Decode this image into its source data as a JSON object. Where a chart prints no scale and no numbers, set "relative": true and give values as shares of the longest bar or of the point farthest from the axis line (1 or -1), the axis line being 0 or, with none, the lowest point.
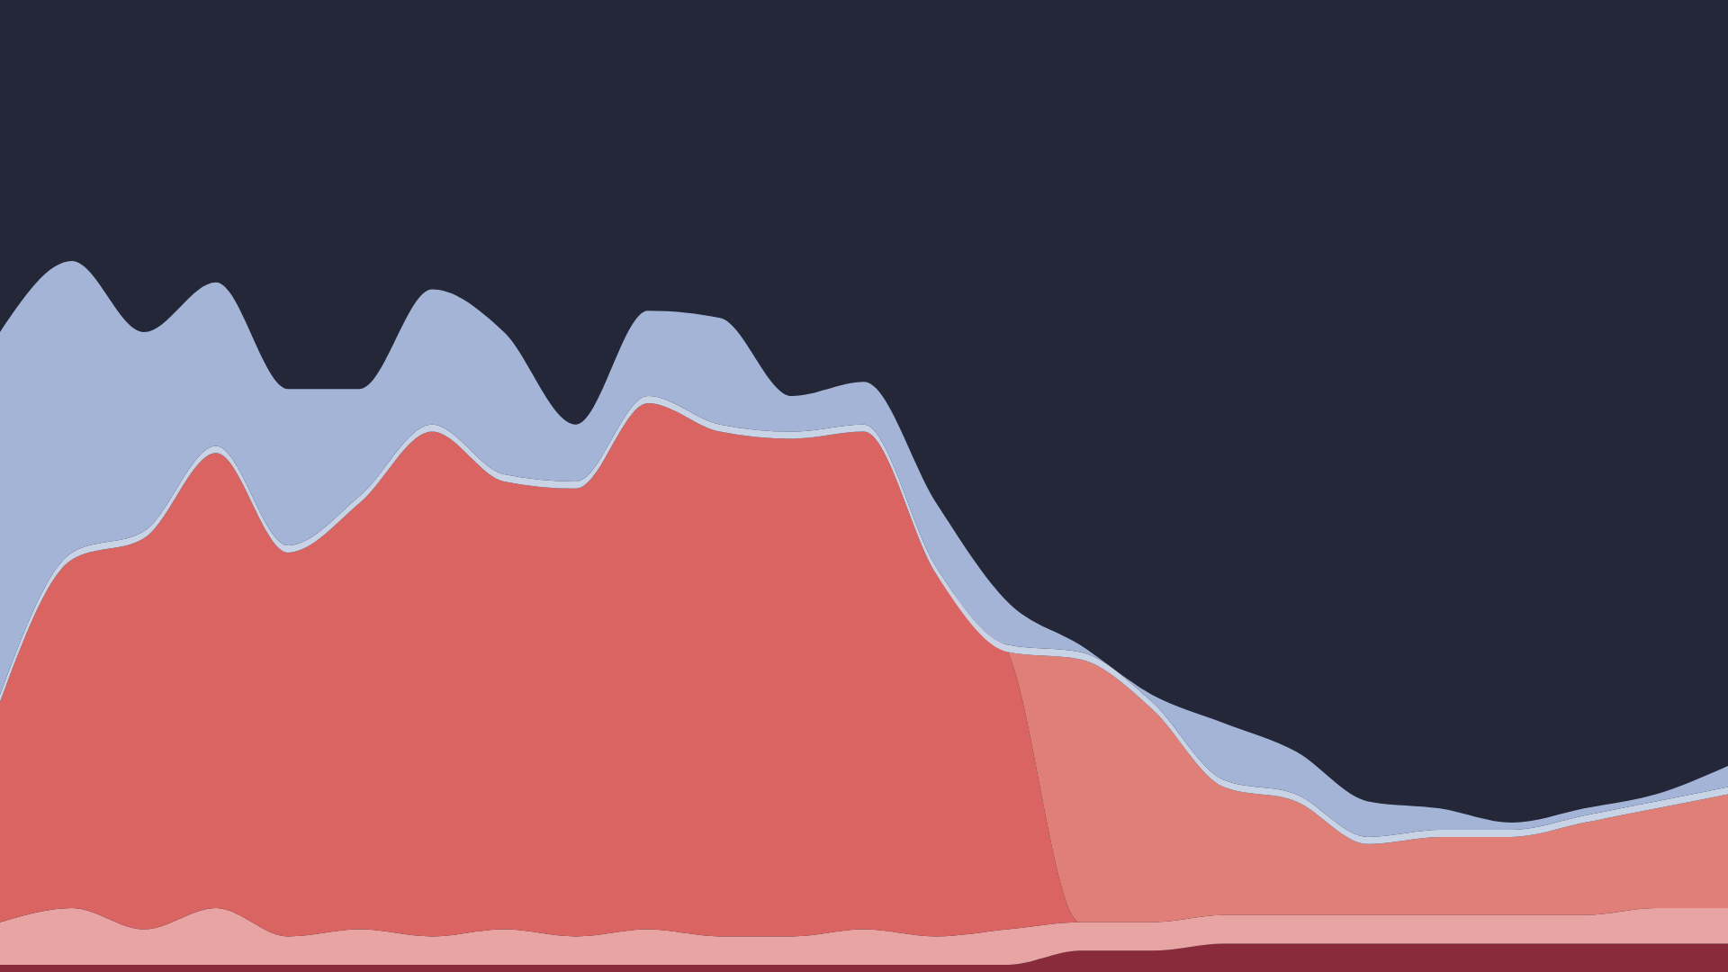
{
  "chart_data": {
    "type": "area",
    "stacked": true,
    "relative": true,
    "legend": false,
    "categories": [
      null,
      null,
      null,
      null,
      null,
      null,
      null,
      null,
      null,
      null,
      null,
      null,
      null,
      null,
      null,
      null,
      null,
      null,
      null,
      null,
      null,
      null,
      null,
      null,
      null
    ],
    "series": [
      {
        "color": "#8a2b3b",
        "values": [
          0.01,
          0.01,
          0.01,
          0.01,
          0.01,
          0.01,
          0.01,
          0.01,
          0.01,
          0.01,
          0.01,
          0.01,
          0.01,
          0.01,
          0.01,
          0.03,
          0.03,
          0.04,
          0.04,
          0.04,
          0.04,
          0.04,
          0.04,
          0.04,
          0.04
        ]
      },
      {
        "color": "#e8a3a3",
        "values": [
          0.06,
          0.08,
          0.05,
          0.08,
          0.04,
          0.05,
          0.04,
          0.05,
          0.04,
          0.05,
          0.04,
          0.04,
          0.05,
          0.04,
          0.05,
          0.04,
          0.04,
          0.04,
          0.04,
          0.04,
          0.04,
          0.04,
          0.04,
          0.05,
          0.05
        ]
      },
      {
        "color": "#d96461",
        "values": [
          0.31,
          0.49,
          0.55,
          0.64,
          0.54,
          0.6,
          0.71,
          0.63,
          0.63,
          0.74,
          0.71,
          0.7,
          0.7,
          0.51,
          0.39,
          0,
          0,
          0,
          0,
          0,
          0,
          0,
          0,
          0,
          0
        ]
      },
      {
        "color": "#e07f77",
        "values": [
          0,
          0,
          0,
          0,
          0,
          0,
          0,
          0,
          0,
          0,
          0,
          0,
          0,
          0,
          0,
          0.37,
          0.3,
          0.18,
          0.16,
          0.1,
          0.11,
          0.11,
          0.13,
          0.14,
          0.16
        ]
      },
      {
        "color": "#c9d3e6",
        "values": [
          0.01,
          0.01,
          0.01,
          0.01,
          0.01,
          0.01,
          0.01,
          0.01,
          0.01,
          0.01,
          0.01,
          0.01,
          0.01,
          0.01,
          0.01,
          0.01,
          0.01,
          0.01,
          0.01,
          0.01,
          0.01,
          0.01,
          0.01,
          0.01,
          0.01
        ]
      },
      {
        "color": "#a3b4d6",
        "values": [
          0.51,
          0.41,
          0.28,
          0.23,
          0.22,
          0.15,
          0.19,
          0.2,
          0.08,
          0.12,
          0.15,
          0.05,
          0.06,
          0.09,
          0.06,
          0.01,
          0.01,
          0.08,
          0.06,
          0.05,
          0.03,
          0.01,
          0.01,
          0.01,
          0.03
        ]
      }
    ]
  }
}
